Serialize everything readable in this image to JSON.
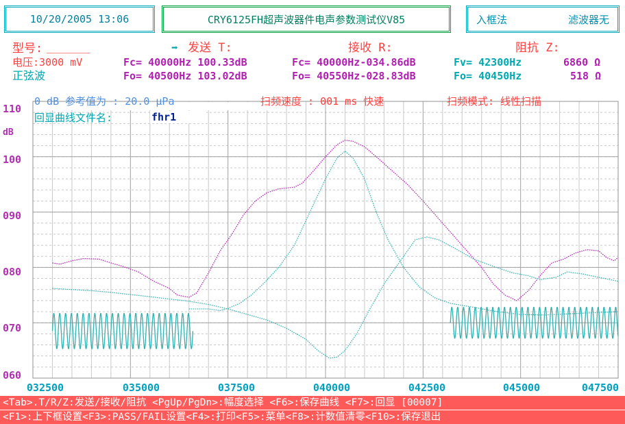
{
  "header": {
    "datetime": "10/20/2005 13:06",
    "title": "CRY6125FH超声波器件电声参数测试仪V85",
    "mode": "入框法",
    "filter": "滤波器无"
  },
  "info": {
    "model_label": "型号:",
    "model_value": "_______",
    "voltage": "电压:3000 mV",
    "waveform": "正弦波",
    "send_arrow": "➡",
    "send_label": "发送 T:",
    "receive_label": "接收 R:",
    "impedance_label": "阻抗 Z:",
    "send_fc": "Fc= 40000Hz 100.33dB",
    "send_fo": "Fo= 40500Hz 103.02dB",
    "recv_fc": "Fc= 40000Hz-034.86dB",
    "recv_fo": "Fo= 40550Hz-028.83dB",
    "imp_fv": "Fv= 42300Hz",
    "imp_fv_val": "6860 Ω",
    "imp_fo": "Fo= 40450Hz",
    "imp_fo_val": "518 Ω",
    "ref_line": "0 dB 参考值为 : 20.0 μPa",
    "sweep_speed": "扫频速度 : 001 ms 快速",
    "sweep_mode": "扫频模式: 线性扫描",
    "curve_file_label": "回显曲线文件名:",
    "curve_file_value": "fhr1"
  },
  "chart_data": {
    "type": "line",
    "ylabel": "dB",
    "ylim": [
      60,
      110
    ],
    "xlim": [
      32500,
      47500
    ],
    "y_ticks": [
      "110",
      "100",
      "090",
      "080",
      "070",
      "060"
    ],
    "x_ticks": [
      "032500",
      "035000",
      "037500",
      "040000",
      "042500",
      "045000",
      "047500"
    ],
    "grid": true,
    "series": [
      {
        "color": "#b020b0",
        "style": "dotted",
        "points": [
          [
            33000,
            80.8
          ],
          [
            33200,
            80.6
          ],
          [
            33500,
            81.2
          ],
          [
            33800,
            81.6
          ],
          [
            34200,
            81.5
          ],
          [
            34500,
            80.8
          ],
          [
            34800,
            80.2
          ],
          [
            35200,
            79.2
          ],
          [
            35600,
            77.5
          ],
          [
            36000,
            76.2
          ],
          [
            36200,
            75.0
          ],
          [
            36500,
            74.6
          ],
          [
            36700,
            75.4
          ],
          [
            37000,
            79.0
          ],
          [
            37300,
            83.0
          ],
          [
            37600,
            86.0
          ],
          [
            37900,
            89.5
          ],
          [
            38200,
            92.0
          ],
          [
            38500,
            93.5
          ],
          [
            38800,
            94.2
          ],
          [
            39200,
            94.5
          ],
          [
            39400,
            95.2
          ],
          [
            39700,
            97.5
          ],
          [
            40000,
            100.0
          ],
          [
            40300,
            102.2
          ],
          [
            40500,
            103.0
          ],
          [
            40700,
            102.8
          ],
          [
            41000,
            101.8
          ],
          [
            41300,
            100.0
          ],
          [
            41700,
            97.5
          ],
          [
            42100,
            95.0
          ],
          [
            42500,
            92.0
          ],
          [
            43000,
            88.0
          ],
          [
            43500,
            84.0
          ],
          [
            44000,
            80.0
          ],
          [
            44300,
            77.0
          ],
          [
            44600,
            75.0
          ],
          [
            44900,
            74.0
          ],
          [
            45200,
            75.8
          ],
          [
            45500,
            78.5
          ],
          [
            45800,
            80.8
          ],
          [
            46100,
            81.5
          ],
          [
            46400,
            82.6
          ],
          [
            46700,
            83.2
          ],
          [
            47000,
            83.0
          ],
          [
            47200,
            81.8
          ],
          [
            47400,
            81.2
          ],
          [
            47500,
            81.8
          ]
        ]
      },
      {
        "color": "#30b0b0",
        "style": "dotted",
        "points": [
          [
            33000,
            76.2
          ],
          [
            33500,
            76.0
          ],
          [
            34000,
            75.8
          ],
          [
            34500,
            75.5
          ],
          [
            35000,
            75.1
          ],
          [
            35500,
            74.7
          ],
          [
            36000,
            74.3
          ],
          [
            36500,
            73.9
          ],
          [
            37000,
            73.3
          ],
          [
            37500,
            72.5
          ],
          [
            38000,
            71.5
          ],
          [
            38500,
            70.5
          ],
          [
            39000,
            69.0
          ],
          [
            39500,
            67.0
          ],
          [
            39800,
            65.0
          ],
          [
            40100,
            63.6
          ],
          [
            40300,
            63.8
          ],
          [
            40500,
            65.0
          ],
          [
            40800,
            68.0
          ],
          [
            41100,
            72.0
          ],
          [
            41500,
            77.0
          ],
          [
            42000,
            82.0
          ],
          [
            42300,
            85.0
          ],
          [
            42600,
            85.5
          ],
          [
            42900,
            85.0
          ],
          [
            43300,
            83.5
          ],
          [
            43800,
            81.5
          ],
          [
            44300,
            80.2
          ],
          [
            44800,
            79.0
          ],
          [
            45200,
            78.5
          ],
          [
            45500,
            77.8
          ],
          [
            45900,
            78.2
          ],
          [
            46200,
            79.2
          ],
          [
            46600,
            78.8
          ],
          [
            47000,
            78.2
          ],
          [
            47500,
            77.5
          ]
        ]
      },
      {
        "color": "#30b0b0",
        "style": "dotted",
        "points": [
          [
            36500,
            72.5
          ],
          [
            37000,
            72.5
          ],
          [
            37300,
            72.2
          ],
          [
            37500,
            72.6
          ],
          [
            37800,
            73.5
          ],
          [
            38100,
            75.0
          ],
          [
            38400,
            77.0
          ],
          [
            38800,
            80.0
          ],
          [
            39200,
            84.0
          ],
          [
            39600,
            90.0
          ],
          [
            40000,
            96.0
          ],
          [
            40300,
            99.8
          ],
          [
            40500,
            101.0
          ],
          [
            40700,
            99.8
          ],
          [
            41000,
            96.0
          ],
          [
            41300,
            90.0
          ],
          [
            41600,
            85.0
          ],
          [
            42000,
            80.0
          ],
          [
            42400,
            76.5
          ],
          [
            42800,
            74.5
          ],
          [
            43200,
            73.5
          ],
          [
            43800,
            72.8
          ],
          [
            44400,
            72.0
          ],
          [
            45000,
            71.5
          ],
          [
            45600,
            71.4
          ],
          [
            46200,
            71.6
          ],
          [
            46800,
            71.8
          ],
          [
            47500,
            72.0
          ]
        ]
      },
      {
        "color": "#30b0b0",
        "style": "solid-oscillation",
        "x_range": [
          33000,
          36600
        ],
        "period_hz": 150,
        "amplitude_db": 3.2,
        "center_db": 68.5
      },
      {
        "color": "#30b0b0",
        "style": "solid-oscillation",
        "x_range": [
          43200,
          47500
        ],
        "period_hz": 150,
        "amplitude_db": 2.8,
        "center_db": 70.0
      }
    ]
  },
  "footer": {
    "line1": "<Tab>.T/R/Z:发送/接收/阻抗 <PgUp/PgDn>:幅度选择 <F6>:保存曲线 <F7>:回显  [00007]",
    "line2": "<F1>:上下框设置<F3>:PASS/FAIL设置<F4>:打印<F5>:菜单<F8>:计数值清零<F10>:保存退出"
  }
}
